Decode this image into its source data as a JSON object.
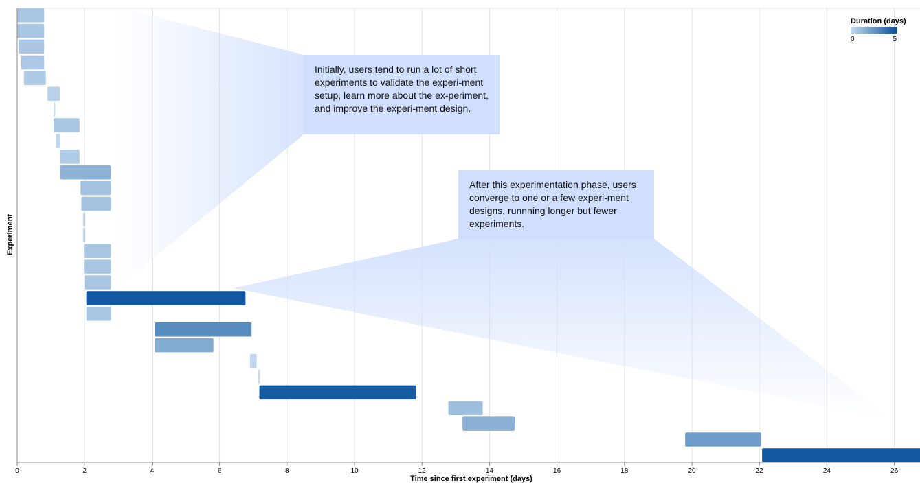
{
  "chart_data": {
    "type": "gantt",
    "xlabel": "Time since first experiment (days)",
    "ylabel": "Experiment",
    "xlim": [
      0,
      26.8
    ],
    "x_ticks": [
      0,
      2,
      4,
      6,
      8,
      10,
      12,
      14,
      16,
      18,
      20,
      22,
      24,
      26
    ],
    "grid": true,
    "color_encoding": "duration",
    "legend": {
      "title": "Duration (days)",
      "min_label": "0",
      "max_label": "5",
      "position": "top-right",
      "color_low": "#c6dbef",
      "color_high": "#08519c"
    },
    "bars": [
      {
        "start": 0.0,
        "end": 0.8
      },
      {
        "start": 0.0,
        "end": 0.8
      },
      {
        "start": 0.05,
        "end": 0.8
      },
      {
        "start": 0.12,
        "end": 0.8
      },
      {
        "start": 0.2,
        "end": 0.85
      },
      {
        "start": 0.9,
        "end": 1.28
      },
      {
        "start": 1.08,
        "end": 1.12
      },
      {
        "start": 1.08,
        "end": 1.85
      },
      {
        "start": 1.15,
        "end": 1.28
      },
      {
        "start": 1.28,
        "end": 1.85
      },
      {
        "start": 1.28,
        "end": 2.78
      },
      {
        "start": 1.88,
        "end": 2.78
      },
      {
        "start": 1.9,
        "end": 2.78
      },
      {
        "start": 1.95,
        "end": 2.02
      },
      {
        "start": 1.95,
        "end": 2.02
      },
      {
        "start": 1.98,
        "end": 2.78
      },
      {
        "start": 1.98,
        "end": 2.78
      },
      {
        "start": 2.0,
        "end": 2.78
      },
      {
        "start": 2.05,
        "end": 6.77
      },
      {
        "start": 2.05,
        "end": 2.78
      },
      {
        "start": 4.08,
        "end": 6.95
      },
      {
        "start": 4.08,
        "end": 5.82
      },
      {
        "start": 6.9,
        "end": 7.1
      },
      {
        "start": 7.15,
        "end": 7.17
      },
      {
        "start": 7.18,
        "end": 11.82
      },
      {
        "start": 12.78,
        "end": 13.8
      },
      {
        "start": 13.2,
        "end": 14.75
      },
      {
        "start": 19.8,
        "end": 22.05
      },
      {
        "start": 22.08,
        "end": 26.8
      }
    ]
  },
  "annotations": [
    {
      "text": "Initially, users tend to run a lot of short experiments to validate the experi-ment setup, learn more about the ex-periment, and improve the experi-ment design."
    },
    {
      "text": "After this experimentation phase, users converge to one or a few experi-ment designs, runnning longer but fewer experiments."
    }
  ]
}
